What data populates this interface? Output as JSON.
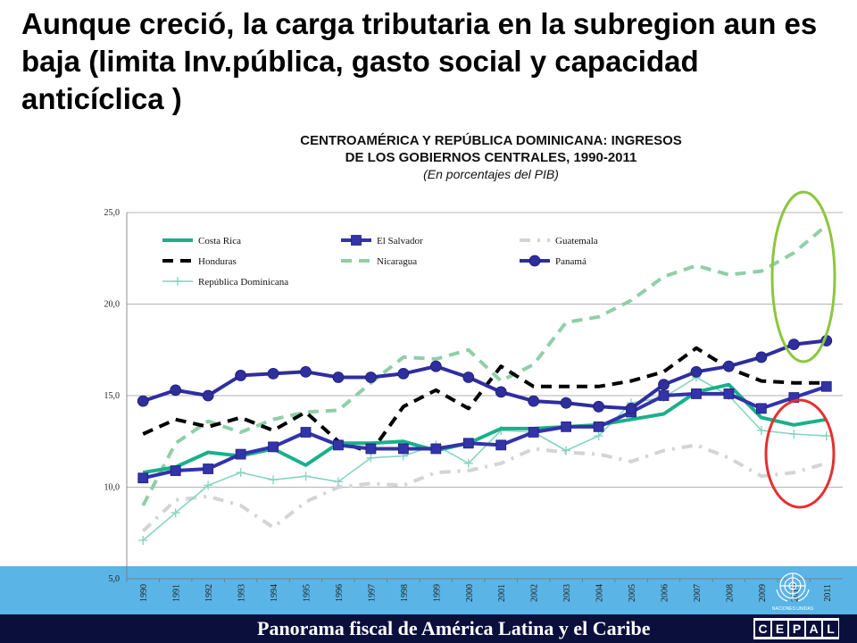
{
  "slide_title": "Aunque creció, la carga tributaria en la subregion aun es baja  (limita Inv.pública, gasto social  y capacidad anticíclica )",
  "footer": {
    "text": "Panorama fiscal de América Latina y el Caribe",
    "logo_letters": [
      "C",
      "E",
      "P",
      "A",
      "L"
    ]
  },
  "emblem": {
    "caption": "NACIONES UNIDAS"
  },
  "colors": {
    "costa_rica": "#19b08a",
    "el_salvador": "#3333aa",
    "guatemala": "#d4d4d4",
    "honduras": "#000000",
    "nicaragua": "#8fcfa8",
    "panama": "#2e2e9e",
    "republica_dominicana": "#86d4c2",
    "highlight_green": "#8cc63f",
    "highlight_red": "#e53030",
    "band": "#5bb4e6",
    "footer": "#0a0f3c"
  },
  "chart_data": {
    "type": "line",
    "title": "CENTROAMÉRICA Y REPÚBLICA DOMINICANA: INGRESOS DE LOS GOBIERNOS CENTRALES, 1990-2011",
    "title_lines": [
      "CENTROAMÉRICA Y REPÚBLICA DOMINICANA: INGRESOS",
      "DE LOS GOBIERNOS CENTRALES, 1990-2011"
    ],
    "subtitle": "(En porcentajes del PIB)",
    "xlabel": "",
    "ylabel": "",
    "ylim": [
      5,
      25
    ],
    "yticks": [
      5,
      10,
      15,
      20,
      25
    ],
    "ytick_labels": [
      "5,0",
      "10,0",
      "15,0",
      "20,0",
      "25,0"
    ],
    "grid": true,
    "legend_position": "top-left",
    "x": [
      "1990",
      "1991",
      "1992",
      "1993",
      "1994",
      "1995",
      "1996",
      "1997",
      "1998",
      "1999",
      "2000",
      "2001",
      "2002",
      "2003",
      "2004",
      "2005",
      "2006",
      "2007",
      "2008",
      "2009",
      "2010",
      "2011"
    ],
    "series": [
      {
        "name": "Costa Rica",
        "key": "costa_rica",
        "style": "solid",
        "marker": "none",
        "values": [
          10.8,
          11.1,
          11.9,
          11.7,
          12.1,
          11.2,
          12.4,
          12.4,
          12.5,
          12.0,
          12.4,
          13.2,
          13.2,
          13.3,
          13.4,
          13.7,
          14.0,
          15.2,
          15.6,
          13.8,
          13.4,
          13.7
        ]
      },
      {
        "name": "El Salvador",
        "key": "el_salvador",
        "style": "solid",
        "marker": "square",
        "values": [
          10.5,
          10.9,
          11.0,
          11.8,
          12.2,
          13.0,
          12.3,
          12.1,
          12.1,
          12.1,
          12.4,
          12.3,
          13.0,
          13.3,
          13.3,
          14.1,
          15.0,
          15.1,
          15.1,
          14.3,
          14.9,
          15.5
        ]
      },
      {
        "name": "Guatemala",
        "key": "guatemala",
        "style": "dashdot",
        "marker": "none",
        "values": [
          7.6,
          9.3,
          9.5,
          9.0,
          7.8,
          9.2,
          10.0,
          10.2,
          10.1,
          10.8,
          10.9,
          11.3,
          12.1,
          11.9,
          11.8,
          11.4,
          12.0,
          12.3,
          11.6,
          10.6,
          10.8,
          11.3
        ]
      },
      {
        "name": "Honduras",
        "key": "honduras",
        "style": "dash",
        "marker": "none",
        "values": [
          12.9,
          13.7,
          13.3,
          13.8,
          13.1,
          14.1,
          12.5,
          11.9,
          14.4,
          15.3,
          14.3,
          16.6,
          15.5,
          15.5,
          15.5,
          15.8,
          16.3,
          17.6,
          16.5,
          15.8,
          15.7,
          15.7
        ]
      },
      {
        "name": "Nicaragua",
        "key": "nicaragua",
        "style": "dash",
        "marker": "none",
        "values": [
          9.0,
          12.4,
          13.6,
          13.0,
          13.7,
          14.1,
          14.2,
          15.7,
          17.1,
          17.0,
          17.5,
          15.8,
          16.7,
          19.0,
          19.3,
          20.2,
          21.5,
          22.1,
          21.6,
          21.8,
          22.8,
          24.3
        ]
      },
      {
        "name": "Panamá",
        "key": "panama",
        "style": "solid",
        "marker": "circle",
        "values": [
          14.7,
          15.3,
          15.0,
          16.1,
          16.2,
          16.3,
          16.0,
          16.0,
          16.2,
          16.6,
          16.0,
          15.2,
          14.7,
          14.6,
          14.4,
          14.3,
          15.6,
          16.3,
          16.6,
          17.1,
          17.8,
          18.0
        ]
      },
      {
        "name": "República Dominicana",
        "key": "republica_dominicana",
        "style": "thin",
        "marker": "plus",
        "values": [
          7.1,
          8.6,
          10.1,
          10.8,
          10.4,
          10.6,
          10.3,
          11.6,
          11.7,
          12.3,
          11.3,
          13.1,
          13.0,
          12.0,
          12.8,
          14.6,
          14.9,
          16.0,
          15.0,
          13.1,
          12.9,
          12.8
        ]
      }
    ]
  }
}
